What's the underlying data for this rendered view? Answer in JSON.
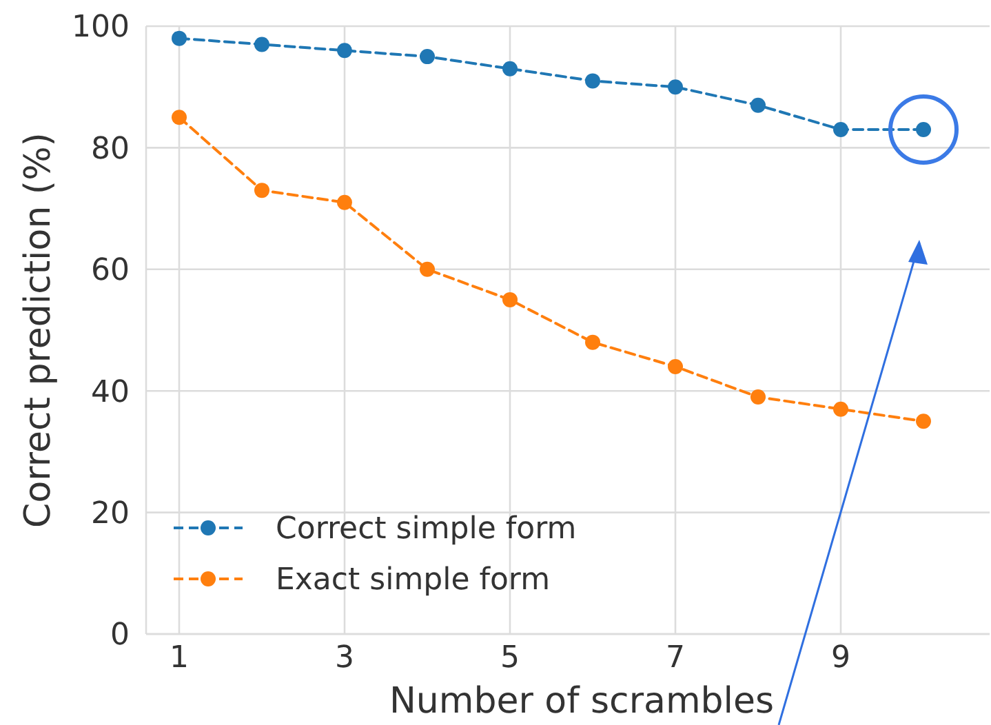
{
  "chart_data": {
    "type": "line",
    "xlabel": "Number of scrambles",
    "ylabel": "Correct prediction (%)",
    "x": [
      1,
      2,
      3,
      4,
      5,
      6,
      7,
      8,
      9,
      10
    ],
    "series": [
      {
        "name": "Correct simple form",
        "color": "#1f77b4",
        "values": [
          98,
          97,
          96,
          95,
          93,
          91,
          90,
          87,
          83,
          83
        ]
      },
      {
        "name": "Exact simple form",
        "color": "#ff7f0e",
        "values": [
          85,
          73,
          71,
          60,
          55,
          48,
          44,
          39,
          37,
          35
        ]
      }
    ],
    "xlim": [
      0.6,
      10.8
    ],
    "xticks": [
      1,
      3,
      5,
      7,
      9
    ],
    "ylim": [
      0,
      100
    ],
    "yticks": [
      0,
      20,
      40,
      60,
      80,
      100
    ],
    "grid": true,
    "legend": "bottom left",
    "marker": "circle",
    "line_style": "dashed"
  }
}
